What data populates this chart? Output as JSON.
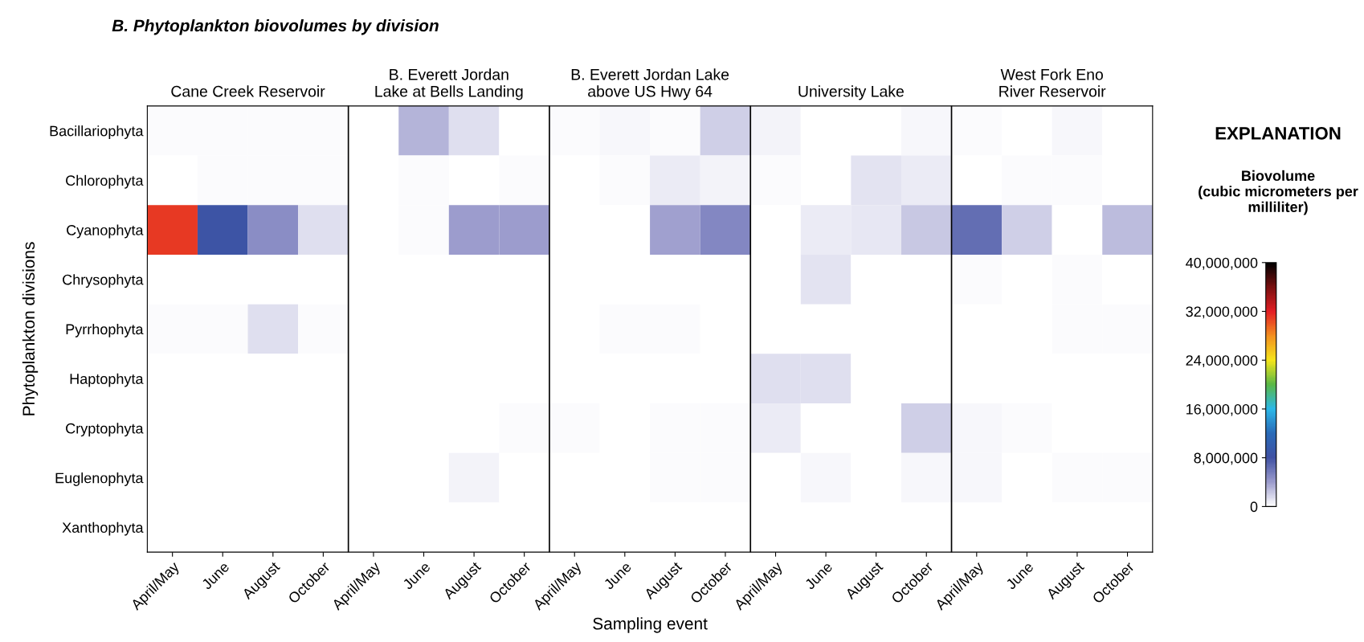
{
  "chart_data": {
    "type": "heatmap",
    "title": "B. Phytoplankton biovolumes by division",
    "ylabel": "Phytoplankton divisions",
    "xlabel": "Sampling event",
    "categories": [
      "April/May",
      "June",
      "August",
      "October",
      "April/May",
      "June",
      "August",
      "October",
      "April/May",
      "June",
      "August",
      "October",
      "April/May",
      "June",
      "August",
      "October",
      "April/May",
      "June",
      "August",
      "October"
    ],
    "y_categories": [
      "Bacillariophyta",
      "Chlorophyta",
      "Cyanophyta",
      "Chrysophyta",
      "Pyrrhophyta",
      "Haptophyta",
      "Cryptophyta",
      "Euglenophyta",
      "Xanthophyta"
    ],
    "annotations": [
      "Cane Creek Reservoir",
      "B. Everett Jordan\nLake at Bells Landing",
      "B. Everett Jordan Lake\nabove US Hwy 64",
      "University Lake",
      "West Fork Eno\nRiver Reservoir"
    ],
    "legend_title": "EXPLANATION",
    "clim": [
      0,
      40000000
    ],
    "cticks": [
      0,
      {
        "value": 8000000,
        "label": "8,000,000"
      },
      {
        "value": 16000000,
        "label": "16,000,000"
      },
      {
        "value": 24000000,
        "label": "24,000,000"
      },
      {
        "value": 32000000,
        "label": "32,000,000"
      },
      {
        "value": 40000000,
        "label": "40,000,000"
      }
    ],
    "clabel": "Biovolume\n(cubic micrometers per\nmilliliter)",
    "cells": [
      [
        200000,
        300000,
        300000,
        200000,
        0,
        3000000,
        1300000,
        150000,
        300000,
        400000,
        300000,
        2000000,
        600000,
        100000,
        0,
        400000,
        300000,
        150000,
        400000,
        0
      ],
      [
        0,
        200000,
        200000,
        200000,
        150000,
        300000,
        150000,
        300000,
        150000,
        300000,
        800000,
        500000,
        300000,
        100000,
        1100000,
        900000,
        0,
        200000,
        300000,
        0
      ],
      [
        31000000,
        8500000,
        4800000,
        1400000,
        0,
        300000,
        4000000,
        4000000,
        0,
        100000,
        3800000,
        5000000,
        100000,
        900000,
        1000000,
        2300000,
        6500000,
        2000000,
        0,
        2800000
      ],
      [
        0,
        0,
        0,
        0,
        0,
        0,
        100000,
        0,
        150000,
        0,
        0,
        100000,
        0,
        1100000,
        0,
        150000,
        300000,
        0,
        200000,
        150000
      ],
      [
        200000,
        200000,
        1400000,
        200000,
        0,
        150000,
        0,
        0,
        0,
        200000,
        200000,
        0,
        0,
        0,
        0,
        0,
        0,
        0,
        300000,
        300000
      ],
      [
        0,
        0,
        100000,
        0,
        0,
        0,
        0,
        100000,
        0,
        0,
        0,
        0,
        1400000,
        1400000,
        100000,
        0,
        150000,
        0,
        0,
        0
      ],
      [
        0,
        100000,
        0,
        150000,
        0,
        0,
        0,
        300000,
        300000,
        0,
        300000,
        300000,
        900000,
        100000,
        0,
        2000000,
        400000,
        200000,
        0,
        0
      ],
      [
        0,
        0,
        0,
        0,
        0,
        0,
        600000,
        150000,
        0,
        0,
        200000,
        300000,
        0,
        400000,
        0,
        400000,
        400000,
        0,
        200000,
        200000
      ],
      [
        0,
        0,
        0,
        0,
        0,
        0,
        0,
        0,
        0,
        0,
        0,
        0,
        0,
        0,
        0,
        0,
        0,
        0,
        0,
        0
      ]
    ]
  }
}
